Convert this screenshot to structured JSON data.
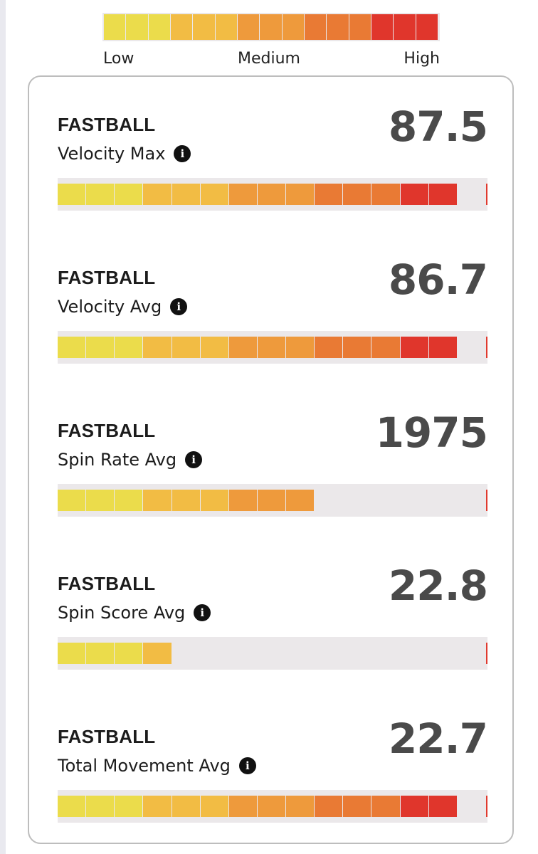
{
  "legend": {
    "low": "Low",
    "medium": "Medium",
    "high": "High",
    "segment_colors": [
      "#ebdc4b",
      "#ebdc4b",
      "#ebdc4b",
      "#f2bc44",
      "#f2bc44",
      "#f2bc44",
      "#ee9a3c",
      "#ee9a3c",
      "#ee9a3c",
      "#e97a34",
      "#e97a34",
      "#e97a34",
      "#e0362c",
      "#e0362c",
      "#e0362c"
    ]
  },
  "scale_colors": [
    "#ebdc4b",
    "#ebdc4b",
    "#ebdc4b",
    "#f2bc44",
    "#f2bc44",
    "#f2bc44",
    "#ee9a3c",
    "#ee9a3c",
    "#ee9a3c",
    "#e97a34",
    "#e97a34",
    "#e97a34",
    "#e0362c",
    "#e0362c",
    "#e0362c"
  ],
  "metrics": [
    {
      "pitch": "FASTBALL",
      "label": "Velocity Max",
      "value": "87.5",
      "filled_segments": 14,
      "total_segments": 15
    },
    {
      "pitch": "FASTBALL",
      "label": "Velocity Avg",
      "value": "86.7",
      "filled_segments": 14,
      "total_segments": 15
    },
    {
      "pitch": "FASTBALL",
      "label": "Spin Rate Avg",
      "value": "1975",
      "filled_segments": 9,
      "total_segments": 15
    },
    {
      "pitch": "FASTBALL",
      "label": "Spin Score Avg",
      "value": "22.8",
      "filled_segments": 4,
      "total_segments": 15
    },
    {
      "pitch": "FASTBALL",
      "label": "Total Movement Avg",
      "value": "22.7",
      "filled_segments": 14,
      "total_segments": 15
    }
  ]
}
